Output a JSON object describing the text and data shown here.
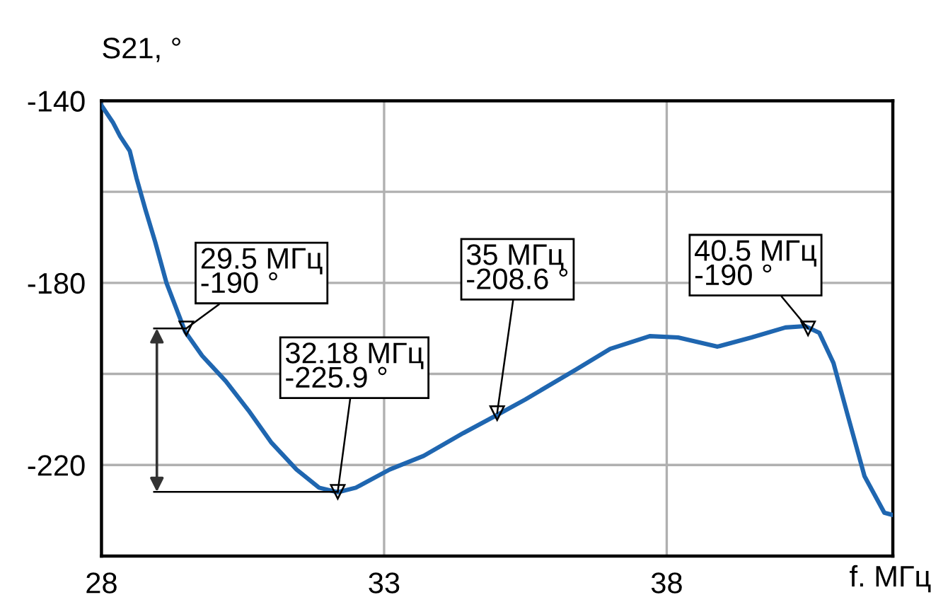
{
  "chart_data": {
    "type": "line",
    "ylabel": "S21, °",
    "xlabel": "f. МГц",
    "x": [
      28,
      28.2,
      28.33,
      28.5,
      28.62,
      28.78,
      28.95,
      29.15,
      29.48,
      29.78,
      30.2,
      30.6,
      31.0,
      31.45,
      31.85,
      32.18,
      32.5,
      33.1,
      33.7,
      34.4,
      35,
      35.5,
      36.4,
      37.0,
      37.7,
      38.2,
      38.9,
      39.5,
      40.1,
      40.45,
      40.7,
      40.95,
      41.2,
      41.5,
      41.85,
      42
    ],
    "series": [
      {
        "color": "#1f66b0",
        "values": [
          -141,
          -144.7,
          -147.8,
          -151,
          -157,
          -164,
          -171,
          -180,
          -190.7,
          -196,
          -201.6,
          -208,
          -215,
          -221,
          -225,
          -226,
          -225,
          -221,
          -218,
          -213,
          -209,
          -205.6,
          -199,
          -194.5,
          -191.7,
          -192,
          -194,
          -192,
          -189.8,
          -189.5,
          -191,
          -197.6,
          -209,
          -222.5,
          -230.5,
          -231
        ]
      }
    ],
    "xlim": [
      28,
      42
    ],
    "xticks": [
      28,
      33,
      38
    ],
    "ylim": [
      -240,
      -140
    ],
    "yticks": [
      -140,
      {
        "value": -160,
        "label": null
      },
      -180,
      {
        "value": -200,
        "label": null
      },
      -220,
      {
        "value": -240,
        "label": null
      }
    ],
    "grid": true,
    "legend": false,
    "marker": "none",
    "line_style": "solid",
    "annotations": [
      {
        "text": "29.5 МГц\n-190 °",
        "x": 29.5,
        "y": -190
      },
      {
        "text": "32.18 МГц\n-225.9 °",
        "x": 32.18,
        "y": -225.9
      },
      {
        "text": "35 МГц\n-208.6 °",
        "x": 35,
        "y": -208.6
      },
      {
        "text": "40.5 МГц\n-190 °",
        "x": 40.5,
        "y": -190
      }
    ]
  }
}
